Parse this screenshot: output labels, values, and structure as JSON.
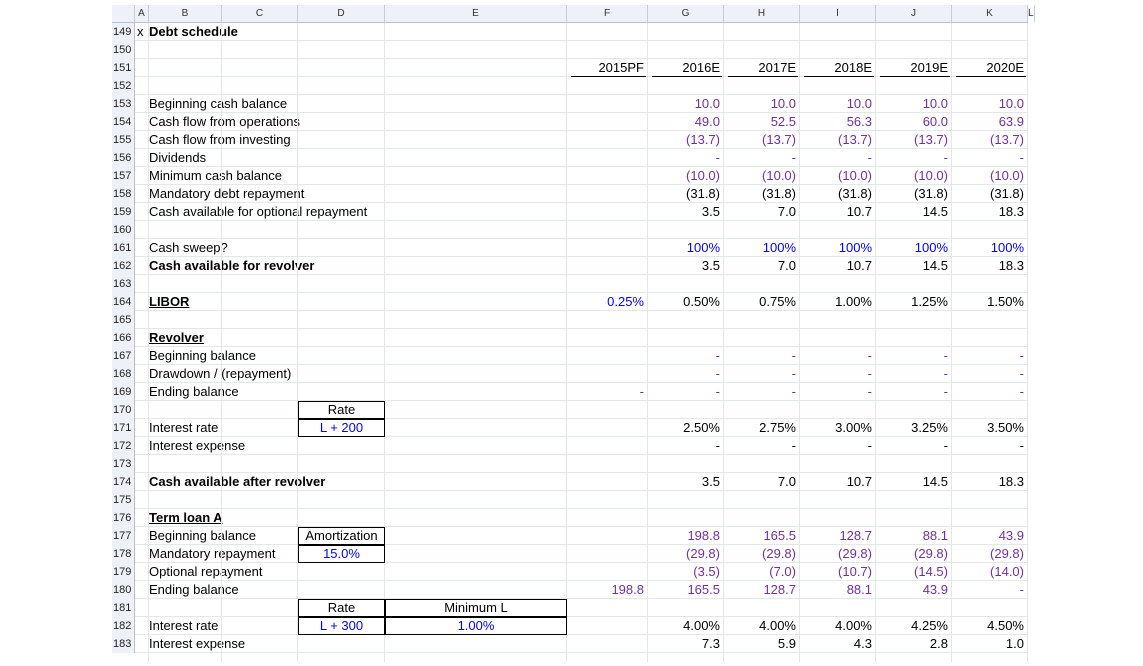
{
  "columns": [
    "A",
    "B",
    "C",
    "D",
    "E",
    "F",
    "G",
    "H",
    "I",
    "J",
    "K",
    "L"
  ],
  "row_numbers": [
    "149",
    "150",
    "151",
    "152",
    "153",
    "154",
    "155",
    "156",
    "157",
    "158",
    "159",
    "160",
    "161",
    "162",
    "163",
    "164",
    "165",
    "166",
    "167",
    "168",
    "169",
    "170",
    "171",
    "172",
    "173",
    "174",
    "175",
    "176",
    "177",
    "178",
    "179",
    "180",
    "181",
    "182",
    "183"
  ],
  "title": "Debt schedule",
  "title_marker": "x",
  "years": [
    "2015PF",
    "2016E",
    "2017E",
    "2018E",
    "2019E",
    "2020E"
  ],
  "rows": {
    "r153": {
      "label": "Beginning cash balance",
      "vals": [
        "",
        "10.0",
        "10.0",
        "10.0",
        "10.0",
        "10.0"
      ]
    },
    "r154": {
      "label": "Cash flow from operations",
      "vals": [
        "",
        "49.0",
        "52.5",
        "56.3",
        "60.0",
        "63.9"
      ]
    },
    "r155": {
      "label": "Cash flow from investing",
      "vals": [
        "",
        "(13.7)",
        "(13.7)",
        "(13.7)",
        "(13.7)",
        "(13.7)"
      ]
    },
    "r156": {
      "label": "Dividends",
      "vals": [
        "",
        "-",
        "-",
        "-",
        "-",
        "-"
      ]
    },
    "r157": {
      "label": "Minimum cash balance",
      "vals": [
        "",
        "(10.0)",
        "(10.0)",
        "(10.0)",
        "(10.0)",
        "(10.0)"
      ]
    },
    "r158": {
      "label": "Mandatory debt repayment",
      "vals": [
        "",
        "(31.8)",
        "(31.8)",
        "(31.8)",
        "(31.8)",
        "(31.8)"
      ]
    },
    "r159": {
      "label": "Cash available for optional repayment",
      "vals": [
        "",
        "3.5",
        "7.0",
        "10.7",
        "14.5",
        "18.3"
      ]
    },
    "r161": {
      "label": "Cash sweep?",
      "vals": [
        "",
        "100%",
        "100%",
        "100%",
        "100%",
        "100%"
      ]
    },
    "r162": {
      "label": "Cash available for revolver",
      "vals": [
        "",
        "3.5",
        "7.0",
        "10.7",
        "14.5",
        "18.3"
      ]
    },
    "r164": {
      "label": "LIBOR",
      "vals": [
        "0.25%",
        "0.50%",
        "0.75%",
        "1.00%",
        "1.25%",
        "1.50%"
      ]
    },
    "r166": {
      "label": "Revolver",
      "vals": [
        "",
        "",
        "",
        "",
        "",
        ""
      ]
    },
    "r167": {
      "label": "Beginning balance",
      "vals": [
        "",
        "-",
        "-",
        "-",
        "-",
        "-"
      ]
    },
    "r168": {
      "label": "Drawdown / (repayment)",
      "vals": [
        "",
        "-",
        "-",
        "-",
        "-",
        "-"
      ]
    },
    "r169": {
      "label": "Ending balance",
      "vals": [
        "-",
        "-",
        "-",
        "-",
        "-",
        "-"
      ]
    },
    "r171": {
      "label": "Interest rate",
      "vals": [
        "",
        "2.50%",
        "2.75%",
        "3.00%",
        "3.25%",
        "3.50%"
      ]
    },
    "r172": {
      "label": "Interest expense",
      "vals": [
        "",
        "-",
        "-",
        "-",
        "-",
        "-"
      ]
    },
    "r174": {
      "label": "Cash available after revolver",
      "vals": [
        "",
        "3.5",
        "7.0",
        "10.7",
        "14.5",
        "18.3"
      ]
    },
    "r176": {
      "label": "Term loan A",
      "vals": [
        "",
        "",
        "",
        "",
        "",
        ""
      ]
    },
    "r177": {
      "label": "Beginning balance",
      "vals": [
        "",
        "198.8",
        "165.5",
        "128.7",
        "88.1",
        "43.9"
      ]
    },
    "r178": {
      "label": "Mandatory repayment",
      "vals": [
        "",
        "(29.8)",
        "(29.8)",
        "(29.8)",
        "(29.8)",
        "(29.8)"
      ]
    },
    "r179": {
      "label": "Optional repayment",
      "vals": [
        "",
        "(3.5)",
        "(7.0)",
        "(10.7)",
        "(14.5)",
        "(14.0)"
      ]
    },
    "r180": {
      "label": "Ending balance",
      "vals": [
        "198.8",
        "165.5",
        "128.7",
        "88.1",
        "43.9",
        "-"
      ]
    },
    "r182": {
      "label": "Interest rate",
      "vals": [
        "",
        "4.00%",
        "4.00%",
        "4.00%",
        "4.25%",
        "4.50%"
      ]
    },
    "r183": {
      "label": "Interest expense",
      "vals": [
        "",
        "7.3",
        "5.9",
        "4.3",
        "2.8",
        "1.0"
      ]
    }
  },
  "boxes": {
    "revolver_rate_header": "Rate",
    "revolver_rate_value": "L + 200",
    "amortization_header": "Amortization",
    "amortization_value": "15.0%",
    "tla_rate_header": "Rate",
    "tla_rate_value": "L + 300",
    "tla_min_header": "Minimum L",
    "tla_min_value": "1.00%"
  },
  "colors": {
    "input_blue": "#0000ff",
    "formula_purple": "#7030a0",
    "header_bg": "#eef1f7"
  }
}
